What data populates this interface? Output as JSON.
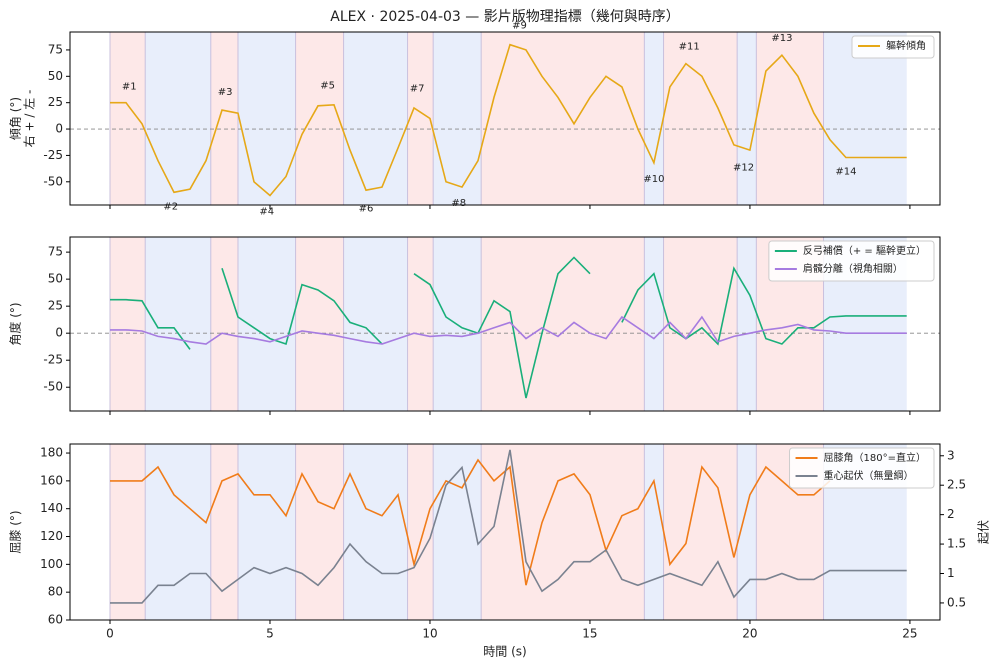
{
  "chart_data": [
    {
      "type": "line",
      "title": "ALEX · 2025-04-03 — 影片版物理指標（幾何與時序）",
      "ylabel": [
        "傾角 (°)",
        "右 + / 左 -"
      ],
      "xlim": [
        -1.25,
        25.94
      ],
      "xticks": [
        0,
        5,
        10,
        15,
        20,
        25
      ],
      "ylim": [
        -72,
        92
      ],
      "yticks": [
        -50,
        -25,
        0,
        25,
        50,
        75
      ],
      "hline": 0,
      "legend": "upper right",
      "spans": [
        [
          0,
          1.1
        ],
        [
          1.1,
          3.15
        ],
        [
          3.15,
          4.0
        ],
        [
          4.0,
          5.8
        ],
        [
          5.8,
          7.3
        ],
        [
          7.3,
          9.3
        ],
        [
          9.3,
          10.1
        ],
        [
          10.1,
          11.6
        ],
        [
          11.6,
          16.7
        ],
        [
          16.7,
          17.3
        ],
        [
          17.3,
          19.6
        ],
        [
          19.6,
          20.2
        ],
        [
          20.2,
          22.3
        ],
        [
          22.3,
          24.9
        ]
      ],
      "span_colors": [
        "#fde8e8",
        "#e8eefb"
      ],
      "x": [
        0,
        0.5,
        1,
        1.5,
        2,
        2.5,
        3,
        3.5,
        4,
        4.5,
        5,
        5.5,
        6,
        6.5,
        7,
        7.5,
        8,
        8.5,
        9,
        9.5,
        10,
        10.5,
        11,
        11.5,
        12,
        12.5,
        13,
        13.5,
        14,
        14.5,
        15,
        15.5,
        16,
        16.5,
        17,
        17.5,
        18,
        18.5,
        19,
        19.5,
        20,
        20.5,
        21,
        21.5,
        22,
        22.5,
        23,
        23.5,
        24,
        24.5,
        24.9
      ],
      "series": [
        {
          "name": "軀幹傾角",
          "color": "#e6a817",
          "values": [
            25,
            25,
            5,
            -30,
            -60,
            -57,
            -30,
            18,
            15,
            -50,
            -63,
            -45,
            -5,
            22,
            23,
            -20,
            -58,
            -55,
            -18,
            20,
            10,
            -50,
            -55,
            -30,
            30,
            80,
            75,
            50,
            30,
            5,
            30,
            50,
            40,
            0,
            -32,
            40,
            62,
            50,
            20,
            -15,
            -20,
            55,
            70,
            50,
            15,
            -10,
            -27,
            -27,
            -27,
            -27,
            -27
          ]
        }
      ],
      "annotations": [
        {
          "text": "#1",
          "x": 0.6,
          "y": 27
        },
        {
          "text": "#2",
          "x": 1.9,
          "y": -60
        },
        {
          "text": "#3",
          "x": 3.6,
          "y": 22
        },
        {
          "text": "#4",
          "x": 4.9,
          "y": -65
        },
        {
          "text": "#5",
          "x": 6.8,
          "y": 28
        },
        {
          "text": "#6",
          "x": 8.0,
          "y": -62
        },
        {
          "text": "#7",
          "x": 9.6,
          "y": 25
        },
        {
          "text": "#8",
          "x": 10.9,
          "y": -57
        },
        {
          "text": "#9",
          "x": 12.8,
          "y": 85
        },
        {
          "text": "#10",
          "x": 17.0,
          "y": -34
        },
        {
          "text": "#11",
          "x": 18.1,
          "y": 65
        },
        {
          "text": "#12",
          "x": 19.8,
          "y": -23
        },
        {
          "text": "#13",
          "x": 21.0,
          "y": 73
        },
        {
          "text": "#14",
          "x": 23.0,
          "y": -27
        }
      ]
    },
    {
      "type": "line",
      "ylabel": [
        "角度 (°)"
      ],
      "xlim": [
        -1.25,
        25.94
      ],
      "xticks": [
        0,
        5,
        10,
        15,
        20,
        25
      ],
      "ylim": [
        -72,
        89
      ],
      "yticks": [
        -50,
        -25,
        0,
        25,
        50,
        75
      ],
      "hline": 0,
      "legend": "upper right",
      "spans": [
        [
          0,
          1.1
        ],
        [
          1.1,
          3.15
        ],
        [
          3.15,
          4.0
        ],
        [
          4.0,
          5.8
        ],
        [
          5.8,
          7.3
        ],
        [
          7.3,
          9.3
        ],
        [
          9.3,
          10.1
        ],
        [
          10.1,
          11.6
        ],
        [
          11.6,
          16.7
        ],
        [
          16.7,
          17.3
        ],
        [
          17.3,
          19.6
        ],
        [
          19.6,
          20.2
        ],
        [
          20.2,
          22.3
        ],
        [
          22.3,
          24.9
        ]
      ],
      "span_colors": [
        "#fde8e8",
        "#e8eefb"
      ],
      "x": [
        0,
        0.5,
        1,
        1.5,
        2,
        2.5,
        3,
        3.5,
        4,
        4.5,
        5,
        5.5,
        6,
        6.5,
        7,
        7.5,
        8,
        8.5,
        9,
        9.5,
        10,
        10.5,
        11,
        11.5,
        12,
        12.5,
        13,
        13.5,
        14,
        14.5,
        15,
        15.5,
        16,
        16.5,
        17,
        17.5,
        18,
        18.5,
        19,
        19.5,
        20,
        20.5,
        21,
        21.5,
        22,
        22.5,
        23,
        23.5,
        24,
        24.5,
        24.9
      ],
      "series": [
        {
          "name": "反弓補償（+ = 驅幹更立）",
          "color": "#1aaf7a",
          "values": [
            31,
            31,
            30,
            5,
            5,
            -15,
            null,
            60,
            15,
            5,
            -5,
            -10,
            45,
            40,
            30,
            10,
            5,
            -10,
            null,
            55,
            45,
            15,
            5,
            0,
            30,
            20,
            -60,
            0,
            55,
            70,
            55,
            null,
            10,
            40,
            55,
            5,
            -5,
            5,
            -10,
            60,
            35,
            -5,
            -10,
            5,
            5,
            15,
            16,
            16,
            16,
            16,
            16
          ]
        },
        {
          "name": "肩髖分離（視角相關）",
          "color": "#a67be0",
          "values": [
            3,
            3,
            2,
            -3,
            -5,
            -8,
            -10,
            0,
            -3,
            -5,
            -8,
            -3,
            2,
            0,
            -2,
            -5,
            -8,
            -10,
            -5,
            0,
            -3,
            -2,
            -3,
            0,
            5,
            10,
            -5,
            5,
            -3,
            10,
            0,
            -5,
            15,
            5,
            -5,
            10,
            -5,
            15,
            -8,
            -3,
            0,
            3,
            5,
            8,
            3,
            2,
            0,
            0,
            0,
            0,
            0
          ]
        }
      ]
    },
    {
      "type": "line",
      "ylabel": [
        "屈膝 (°)"
      ],
      "y2label": "起伏",
      "xlabel": "時間 (s)",
      "xlim": [
        -1.25,
        25.94
      ],
      "xticks": [
        0,
        5,
        10,
        15,
        20,
        25
      ],
      "ylim": [
        60,
        186.5
      ],
      "yticks": [
        60,
        80,
        100,
        120,
        140,
        160,
        180
      ],
      "y2lim": [
        0.21,
        3.2
      ],
      "y2ticks": [
        0.5,
        1.0,
        1.5,
        2.0,
        2.5,
        3.0
      ],
      "legend": "upper right",
      "spans": [
        [
          0,
          1.1
        ],
        [
          1.1,
          3.15
        ],
        [
          3.15,
          4.0
        ],
        [
          4.0,
          5.8
        ],
        [
          5.8,
          7.3
        ],
        [
          7.3,
          9.3
        ],
        [
          9.3,
          10.1
        ],
        [
          10.1,
          11.6
        ],
        [
          11.6,
          16.7
        ],
        [
          16.7,
          17.3
        ],
        [
          17.3,
          19.6
        ],
        [
          19.6,
          20.2
        ],
        [
          20.2,
          22.3
        ],
        [
          22.3,
          24.9
        ]
      ],
      "span_colors": [
        "#fde8e8",
        "#e8eefb"
      ],
      "x": [
        0,
        0.5,
        1,
        1.5,
        2,
        2.5,
        3,
        3.5,
        4,
        4.5,
        5,
        5.5,
        6,
        6.5,
        7,
        7.5,
        8,
        8.5,
        9,
        9.5,
        10,
        10.5,
        11,
        11.5,
        12,
        12.5,
        13,
        13.5,
        14,
        14.5,
        15,
        15.5,
        16,
        16.5,
        17,
        17.5,
        18,
        18.5,
        19,
        19.5,
        20,
        20.5,
        21,
        21.5,
        22,
        22.5,
        23,
        23.5,
        24,
        24.5,
        24.9
      ],
      "series": [
        {
          "name": "屈膝角（180°=直立）",
          "color": "#f07c1a",
          "values": [
            160,
            160,
            160,
            170,
            150,
            140,
            130,
            160,
            165,
            150,
            150,
            135,
            165,
            145,
            140,
            165,
            140,
            135,
            150,
            100,
            140,
            160,
            155,
            175,
            160,
            170,
            85,
            130,
            160,
            165,
            150,
            110,
            135,
            140,
            160,
            100,
            115,
            170,
            155,
            105,
            150,
            170,
            160,
            150,
            150,
            160,
            null,
            null,
            null,
            null,
            null
          ]
        },
        {
          "name": "重心起伏（無量綱）",
          "color": "#7a8290",
          "axis": "y2",
          "values": [
            0.5,
            0.5,
            0.5,
            0.8,
            0.8,
            1.0,
            1.0,
            0.7,
            0.9,
            1.1,
            1.0,
            1.1,
            1.0,
            0.8,
            1.1,
            1.5,
            1.2,
            1.0,
            1.0,
            1.1,
            1.6,
            2.5,
            2.8,
            1.5,
            1.8,
            3.1,
            1.2,
            0.7,
            0.9,
            1.2,
            1.2,
            1.4,
            0.9,
            0.8,
            0.9,
            1.0,
            0.9,
            0.8,
            1.2,
            0.6,
            0.9,
            0.9,
            1.0,
            0.9,
            0.9,
            1.05,
            1.05,
            1.05,
            1.05,
            1.05,
            1.05
          ]
        }
      ]
    }
  ]
}
